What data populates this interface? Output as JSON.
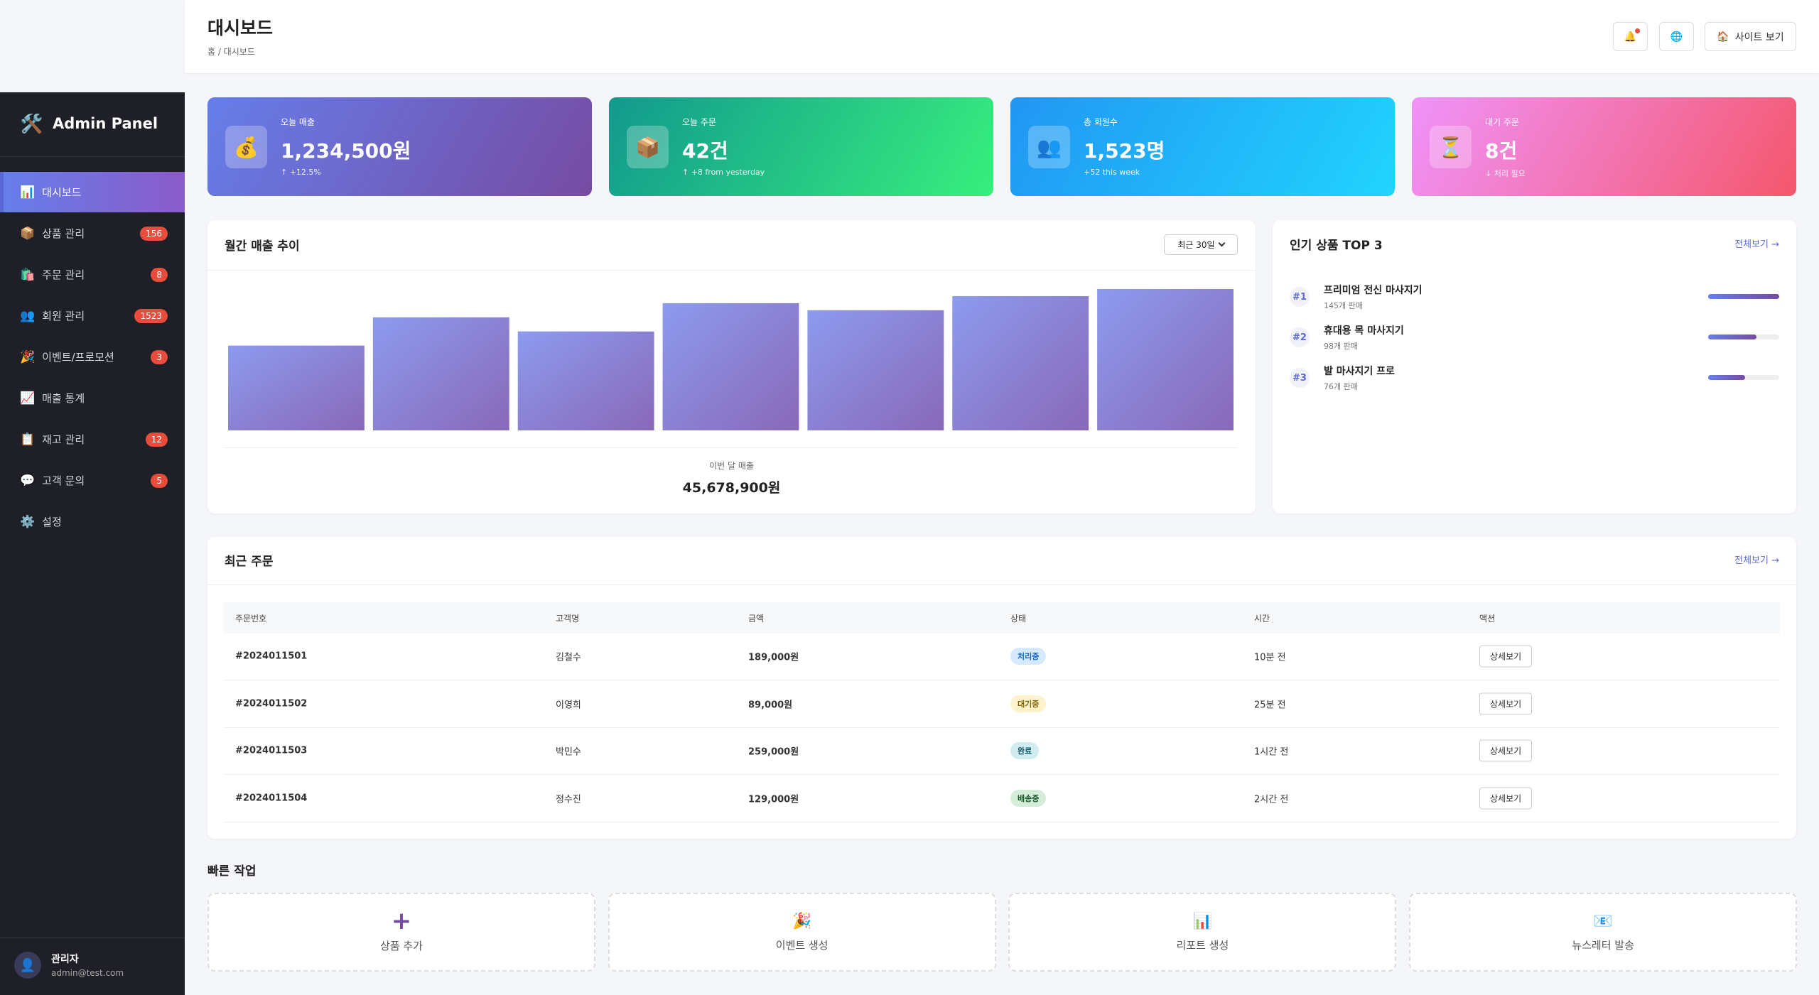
{
  "sidebar": {
    "logo_icon": "🛠️",
    "logo": "Admin Panel",
    "menu": [
      {
        "icon": "📊",
        "label": "대시보드",
        "active": true
      },
      {
        "icon": "📦",
        "label": "상품 관리",
        "badge": 156
      },
      {
        "icon": "🛍️",
        "label": "주문 관리",
        "badge": 8
      },
      {
        "icon": "👥",
        "label": "회원 관리",
        "badge": 1523
      },
      {
        "icon": "🎉",
        "label": "이벤트/프로모션",
        "badge": 3
      },
      {
        "icon": "📈",
        "label": "매출 통계"
      },
      {
        "icon": "📋",
        "label": "재고 관리",
        "badge": 12
      },
      {
        "icon": "💬",
        "label": "고객 문의",
        "badge": 5
      },
      {
        "icon": "⚙️",
        "label": "설정"
      }
    ],
    "user": {
      "avatar": "👤",
      "name": "관리자",
      "email": "admin@test.com"
    }
  },
  "header": {
    "title": "대시보드",
    "breadcrumb": "홈 / 대시보드",
    "buttons": [
      {
        "icon": "🔔"
      },
      {
        "icon": "🌐"
      },
      {
        "icon": "🏠",
        "label": "사이트 보기"
      }
    ]
  },
  "stats": [
    {
      "icon": "💰",
      "label": "오늘 매출",
      "value": "1,234,500원",
      "change": "↑ +12.5%"
    },
    {
      "icon": "📦",
      "label": "오늘 주문",
      "value": "42건",
      "change": "↑ +8 from yesterday"
    },
    {
      "icon": "👥",
      "label": "총 회원수",
      "value": "1,523명",
      "change": "+52 this week"
    },
    {
      "icon": "⏳",
      "label": "대기 주문",
      "value": "8건",
      "change": "↓ 처리 필요"
    }
  ],
  "sales_chart": {
    "type": "bar",
    "title": "월간 매출 추이",
    "period": "최근 30일",
    "values": [
      60,
      80,
      70,
      90,
      85,
      95,
      100
    ],
    "ylim": [
      0,
      100
    ],
    "summary_label": "이번 달 매출",
    "summary_value": "45,678,900원"
  },
  "top_products": {
    "title": "인기 상품 TOP 3",
    "more": "전체보기 →",
    "items": [
      {
        "rank": "#1",
        "name": "프리미엄 전신 마사지기",
        "sold": 145,
        "sold_label": "145개 판매"
      },
      {
        "rank": "#2",
        "name": "휴대용 목 마사지기",
        "sold": 98,
        "sold_label": "98개 판매"
      },
      {
        "rank": "#3",
        "name": "발 마사지기 프로",
        "sold": 76,
        "sold_label": "76개 판매"
      }
    ]
  },
  "orders": {
    "title": "최근 주문",
    "more": "전체보기 →",
    "columns": [
      "주문번호",
      "고객명",
      "금액",
      "상태",
      "시간",
      "액션"
    ],
    "rows": [
      [
        "#2024011501",
        "김철수",
        "189,000원",
        "처리중",
        "10분 전",
        "상세보기"
      ],
      [
        "#2024011502",
        "이영희",
        "89,000원",
        "대기중",
        "25분 전",
        "상세보기"
      ],
      [
        "#2024011503",
        "박민수",
        "259,000원",
        "완료",
        "1시간 전",
        "상세보기"
      ],
      [
        "#2024011504",
        "정수진",
        "129,000원",
        "배송중",
        "2시간 전",
        "상세보기"
      ]
    ]
  },
  "quick_actions": {
    "title": "빠른 작업",
    "items": [
      {
        "icon": "+",
        "label": "상품 추가"
      },
      {
        "icon": "🎉",
        "label": "이벤트 생성"
      },
      {
        "icon": "📊",
        "label": "리포트 생성"
      },
      {
        "icon": "📧",
        "label": "뉴스레터 발송"
      }
    ]
  }
}
